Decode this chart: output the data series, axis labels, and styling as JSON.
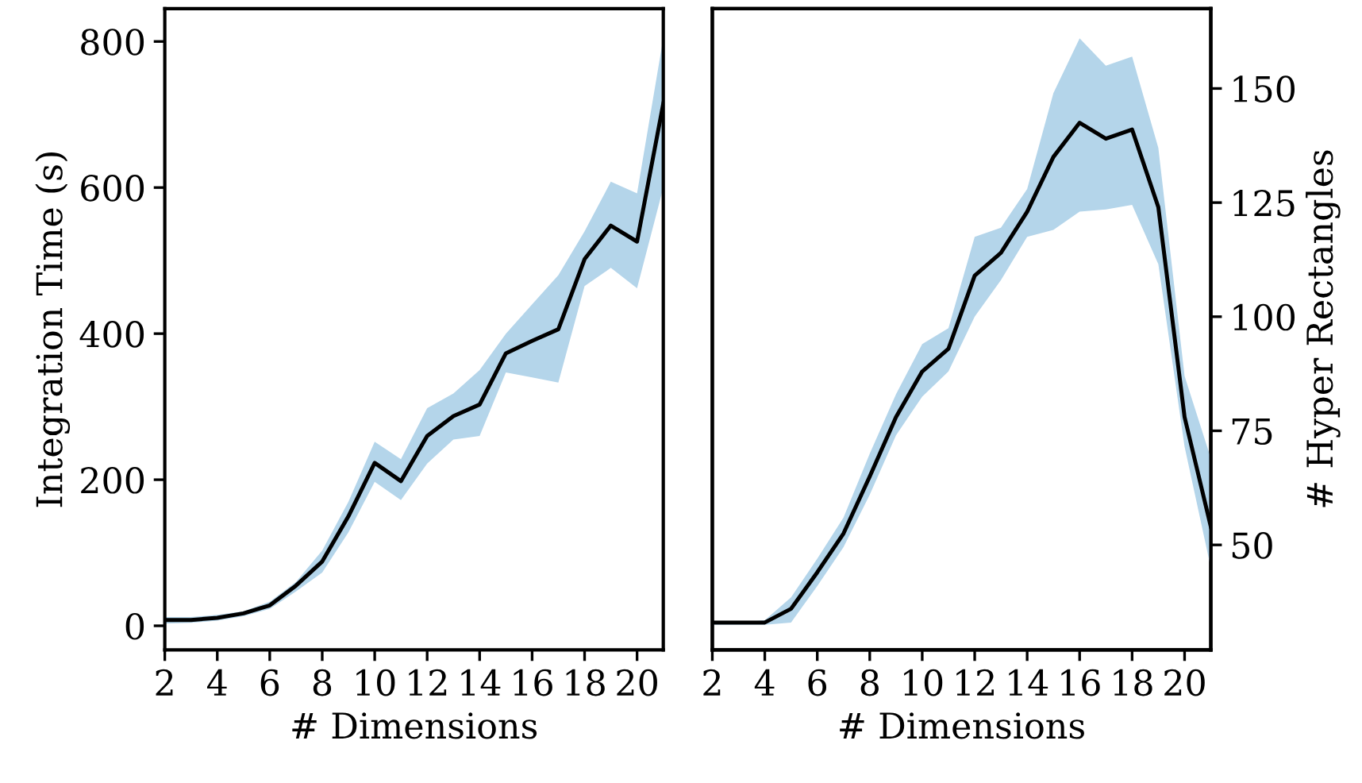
{
  "chart_data": [
    {
      "type": "line",
      "xlabel": "# Dimensions",
      "ylabel": "Integration Time (s)",
      "x": [
        2,
        3,
        4,
        5,
        6,
        7,
        8,
        9,
        10,
        11,
        12,
        13,
        14,
        15,
        16,
        17,
        18,
        19,
        20,
        21
      ],
      "xlim": [
        2,
        21
      ],
      "xticks": [
        2,
        4,
        6,
        8,
        10,
        12,
        14,
        16,
        18,
        20
      ],
      "ylim": [
        -33,
        845
      ],
      "yticks": [
        0,
        200,
        400,
        600,
        800
      ],
      "grid": false,
      "marker": "none",
      "line_style": "solid",
      "series": [
        {
          "color": "#000000",
          "values": [
            8,
            8,
            11,
            17,
            28,
            55,
            88,
            150,
            223,
            198,
            260,
            287,
            303,
            373,
            390,
            406,
            502,
            548,
            526,
            715
          ],
          "lower": [
            3,
            4,
            7,
            13,
            23,
            47,
            73,
            128,
            197,
            172,
            222,
            255,
            260,
            347,
            340,
            333,
            465,
            490,
            462,
            600
          ],
          "upper": [
            12,
            12,
            15,
            20,
            33,
            60,
            103,
            170,
            252,
            228,
            298,
            318,
            350,
            400,
            440,
            480,
            540,
            608,
            592,
            805
          ]
        }
      ]
    },
    {
      "type": "line",
      "xlabel": "# Dimensions",
      "y2label": "# Hyper Rectangles",
      "x": [
        2,
        3,
        4,
        5,
        6,
        7,
        8,
        9,
        10,
        11,
        12,
        13,
        14,
        15,
        16,
        17,
        18,
        19,
        20,
        21
      ],
      "xlim": [
        2,
        21
      ],
      "xticks": [
        2,
        4,
        6,
        8,
        10,
        12,
        14,
        16,
        18,
        20
      ],
      "y2lim": [
        27,
        167.5
      ],
      "y2ticks": [
        50,
        75,
        100,
        125,
        150
      ],
      "grid": false,
      "marker": "none",
      "line_style": "solid",
      "series": [
        {
          "axis": "y2",
          "color": "#000000",
          "values": [
            33,
            33,
            33,
            36,
            44,
            52.5,
            65,
            78,
            88,
            93,
            109,
            114,
            123,
            135,
            142.5,
            139,
            141,
            124,
            78,
            54
          ],
          "lower": [
            32.5,
            32.5,
            32.5,
            33,
            41,
            49.5,
            61,
            74,
            82.5,
            88,
            100,
            108,
            117.5,
            119,
            123,
            123.5,
            124.5,
            111.5,
            71.5,
            45
          ],
          "upper": [
            33,
            33,
            33.5,
            38.5,
            47,
            56,
            70,
            83,
            94,
            97.5,
            117.5,
            119.5,
            128,
            149,
            161,
            155,
            157,
            137,
            87,
            69
          ]
        }
      ]
    }
  ]
}
